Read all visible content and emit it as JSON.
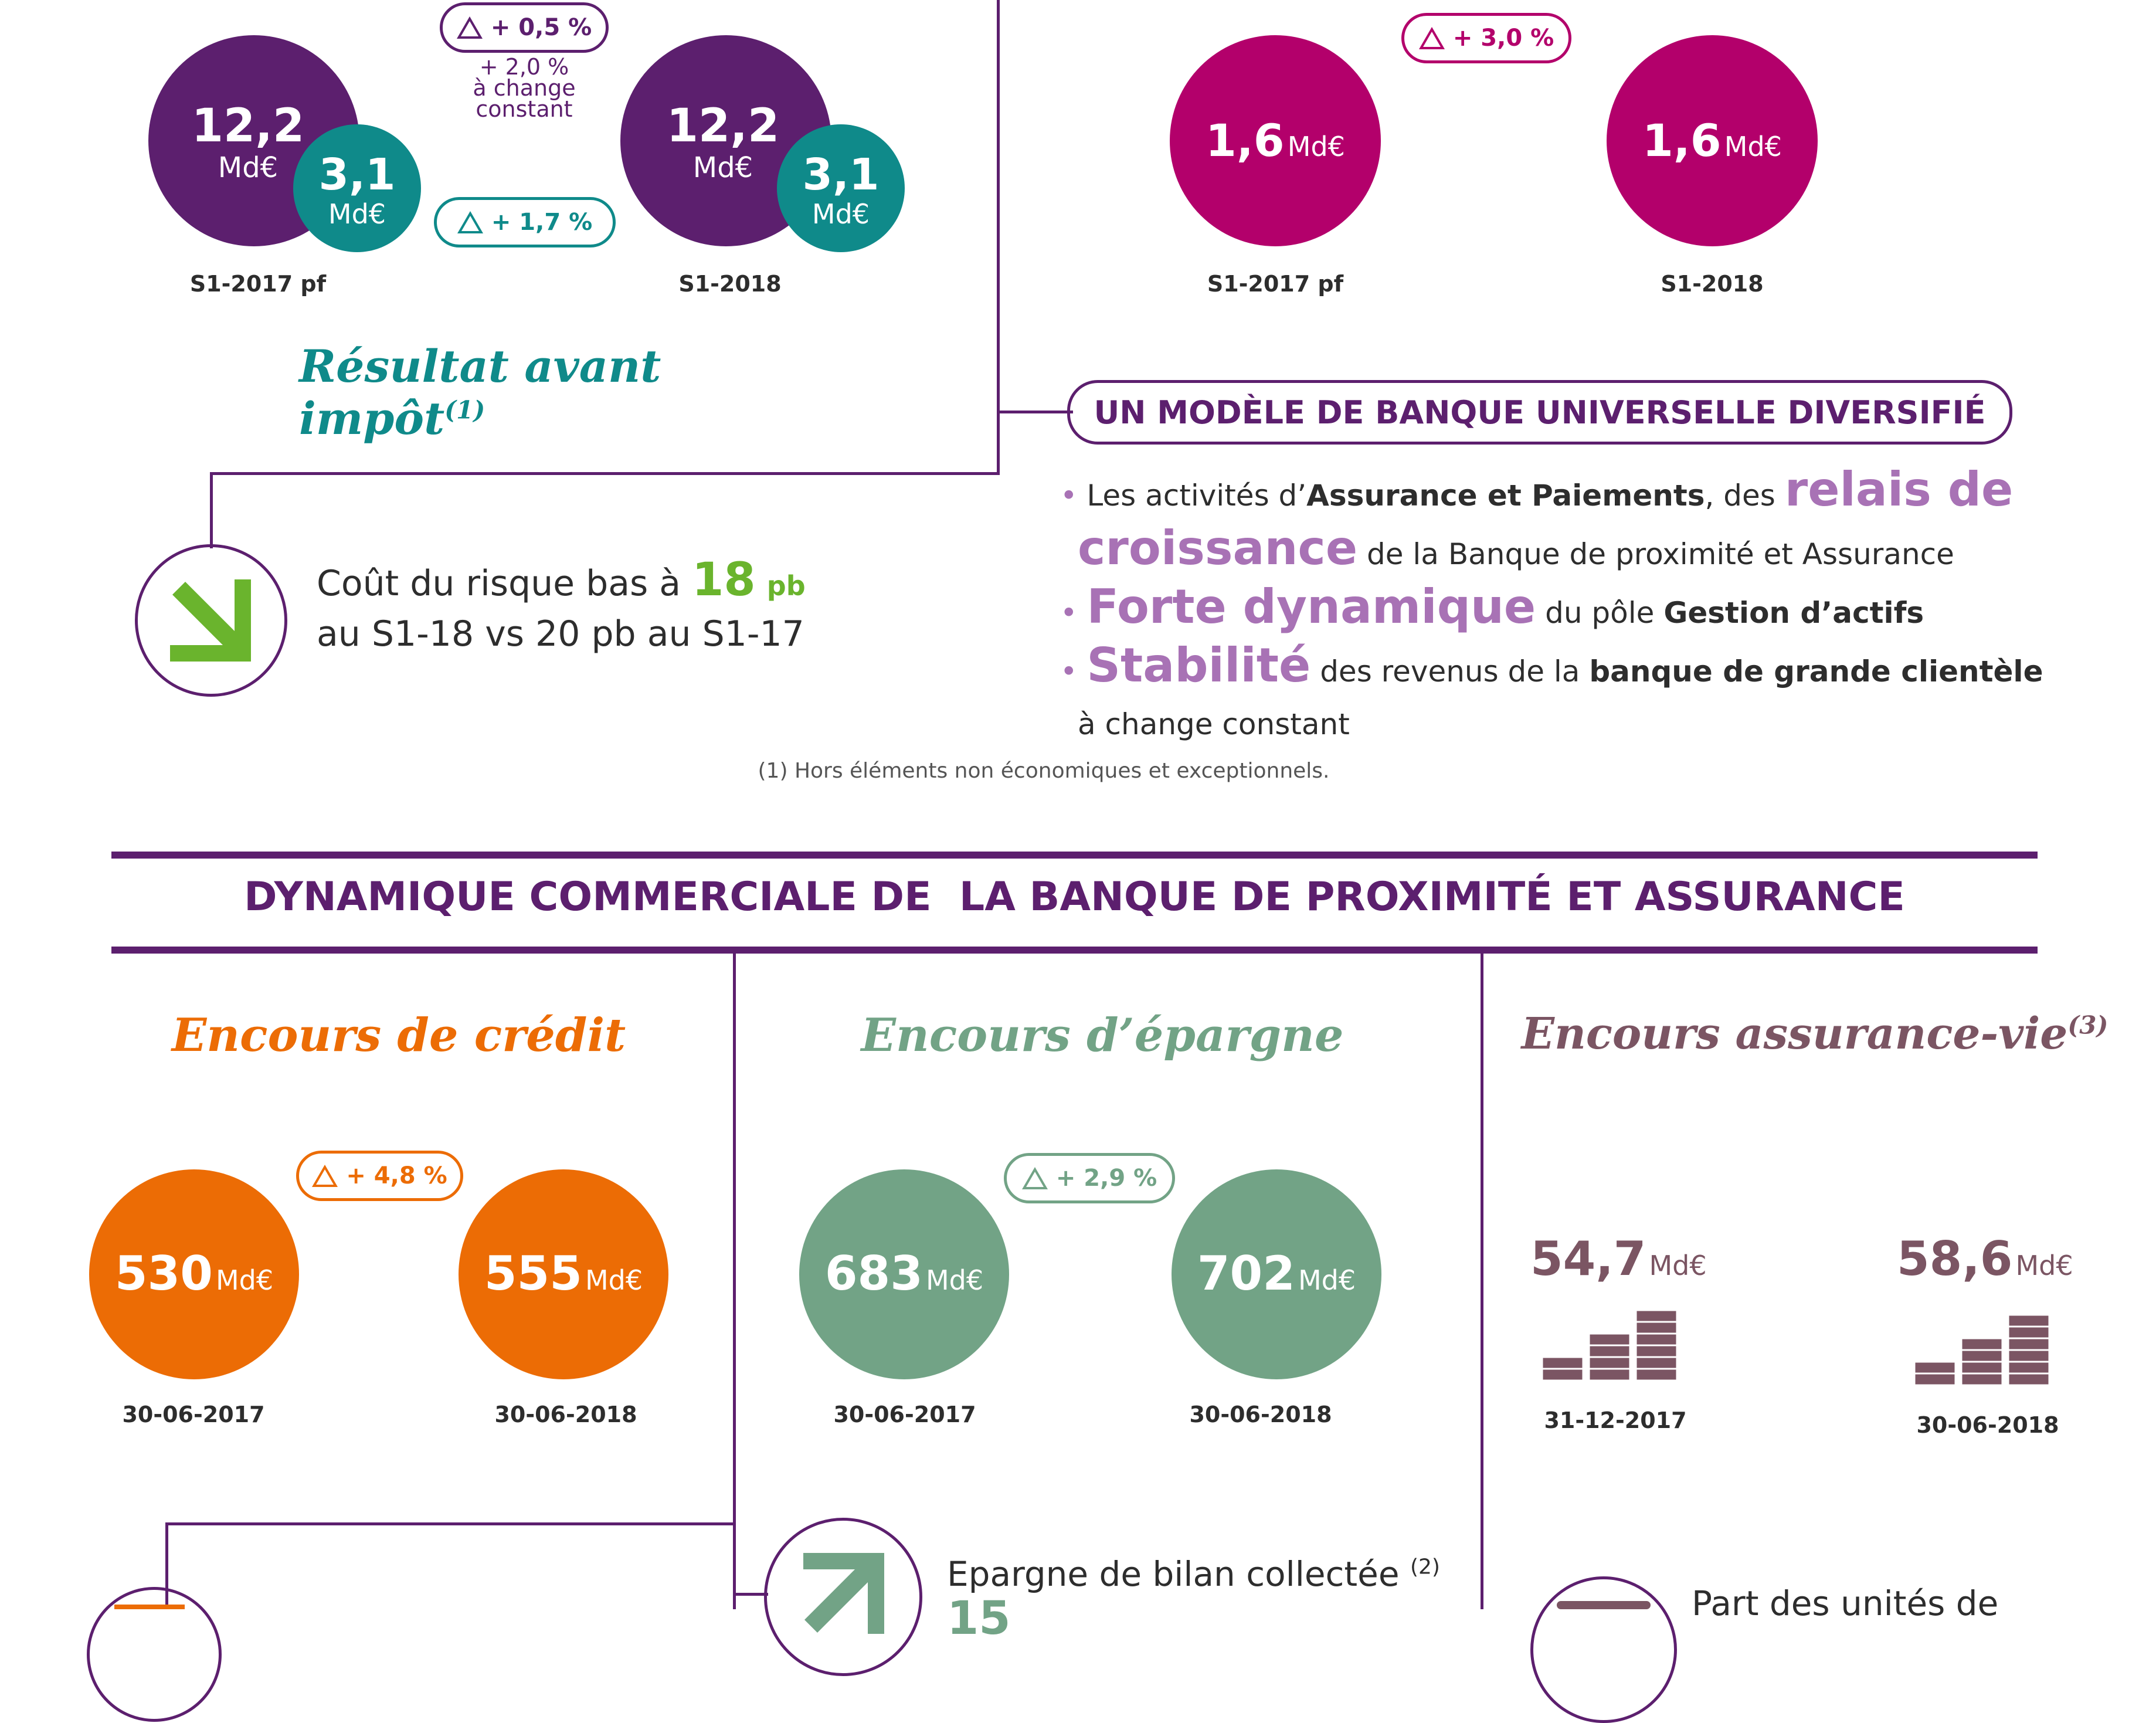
{
  "top_left": {
    "change_top": "+ 0,5 %",
    "note_line1": "+ 2,0 %",
    "note_line2": "à change",
    "note_line3": "constant",
    "change_bottom": "+ 1,7 %",
    "y1": {
      "big_value": "12,2",
      "big_unit": "Md€",
      "small_value": "3,1",
      "small_unit": "Md€",
      "label": "S1-2017 pf"
    },
    "y2": {
      "big_value": "12,2",
      "big_unit": "Md€",
      "small_value": "3,1",
      "small_unit": "Md€",
      "label": "S1-2018"
    },
    "title": "Résultat avant impôt",
    "title_note": "(1)"
  },
  "top_right": {
    "change": "+ 3,0 %",
    "y1": {
      "value": "1,6",
      "unit": "Md€",
      "label": "S1-2017 pf"
    },
    "y2": {
      "value": "1,6",
      "unit": "Md€",
      "label": "S1-2018"
    }
  },
  "risk": {
    "text1": "Coût du risque bas à",
    "value": "18",
    "unit": "pb",
    "text2": "au S1-18 vs 20 pb au S1-17"
  },
  "model": {
    "title": "UN MODÈLE DE BANQUE UNIVERSELLE DIVERSIFIÉ",
    "b1_a": "Les activités d’",
    "b1_b": "Assurance et Paiements",
    "b1_c": ", des",
    "b1_d": "relais de",
    "b1_e": "croissance",
    "b1_f": "de la Banque de proximité et Assurance",
    "b2_a": "Forte dynamique",
    "b2_b": "du pôle",
    "b2_c": "Gestion d’actifs",
    "b3_a": "Stabilité",
    "b3_b": "des revenus de la",
    "b3_c": "banque de grande clientèle",
    "b3_d": "à change constant",
    "bullet": "•"
  },
  "footnote": "(1) Hors éléments non économiques et exceptionnels.",
  "section_title": "DYNAMIQUE COMMERCIALE DE  LA BANQUE DE PROXIMITÉ ET ASSURANCE",
  "credit": {
    "title": "Encours de crédit",
    "change": "+ 4,8 %",
    "y1": {
      "value": "530",
      "unit": "Md€",
      "label": "30-06-2017"
    },
    "y2": {
      "value": "555",
      "unit": "Md€",
      "label": "30-06-2018"
    }
  },
  "savings": {
    "title": "Encours d’épargne",
    "change": "+ 2,9 %",
    "y1": {
      "value": "683",
      "unit": "Md€",
      "label": "30-06-2017"
    },
    "y2": {
      "value": "702",
      "unit": "Md€",
      "label": "30-06-2018"
    }
  },
  "life": {
    "title": "Encours assurance-vie",
    "title_note": "(3)",
    "y1": {
      "value": "54,7",
      "unit": "Md€",
      "label": "31-12-2017"
    },
    "y2": {
      "value": "58,6",
      "unit": "Md€",
      "label": "30-06-2018"
    }
  },
  "bottom": {
    "savings_text": "Epargne de bilan collectée",
    "savings_note": "(2)",
    "savings_value": "15",
    "life_text": "Part des unités de"
  },
  "colors": {
    "purple": "#5c1f6e",
    "teal": "#0f8a8a",
    "magenta": "#b3006b",
    "orange": "#ec6c05",
    "green_grey": "#72a386",
    "mauve": "#7b5563",
    "lilac": "#a872b5",
    "lime": "#6ab42d"
  }
}
